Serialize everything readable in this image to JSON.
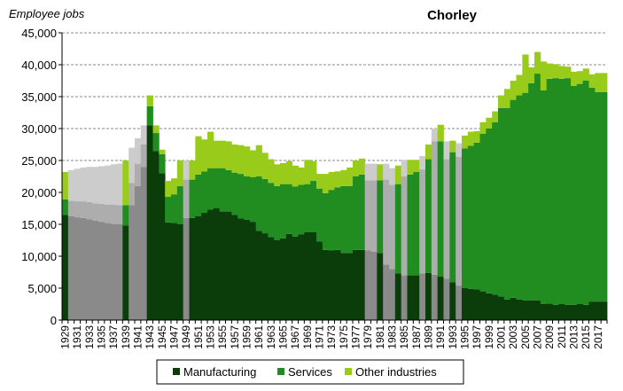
{
  "chart_data": {
    "type": "bar",
    "stacked": true,
    "title": "Chorley",
    "ylabel": "Employee jobs",
    "ylim": [
      0,
      45000
    ],
    "yticks": [
      0,
      5000,
      10000,
      15000,
      20000,
      25000,
      30000,
      35000,
      40000,
      45000
    ],
    "ytick_labels": [
      "0",
      "5,000",
      "10,000",
      "15,000",
      "20,000",
      "25,000",
      "30,000",
      "35,000",
      "40,000",
      "45,000"
    ],
    "xtick_labels": [
      "1929",
      "1931",
      "1933",
      "1935",
      "1937",
      "1939",
      "1941",
      "1943",
      "1945",
      "1947",
      "1949",
      "1951",
      "1953",
      "1955",
      "1957",
      "1959",
      "1961",
      "1963",
      "1965",
      "1967",
      "1969",
      "1971",
      "1973",
      "1975",
      "1977",
      "1979",
      "1981",
      "1983",
      "1985",
      "1987",
      "1989",
      "1991",
      "1993",
      "1995",
      "1997",
      "1999",
      "2001",
      "2003",
      "2005",
      "2007",
      "2009",
      "2011",
      "2013",
      "2015",
      "2017"
    ],
    "grid": true,
    "legend_position": "bottom",
    "colors": {
      "manufacturing": "#0a3d0a",
      "services": "#218d21",
      "other": "#99cc1a",
      "manufacturing_estimated": "#8a8a8a",
      "services_estimated": "#adadad",
      "other_estimated": "#cccccc"
    },
    "series": [
      {
        "name": "Manufacturing",
        "key": "manufacturing"
      },
      {
        "name": "Services",
        "key": "services"
      },
      {
        "name": "Other industries",
        "key": "other"
      }
    ],
    "years": [
      1929,
      1930,
      1931,
      1932,
      1933,
      1934,
      1935,
      1936,
      1937,
      1938,
      1939,
      1940,
      1941,
      1942,
      1943,
      1944,
      1945,
      1946,
      1947,
      1948,
      1949,
      1950,
      1951,
      1952,
      1953,
      1954,
      1955,
      1956,
      1957,
      1958,
      1959,
      1960,
      1961,
      1962,
      1963,
      1964,
      1965,
      1966,
      1967,
      1968,
      1969,
      1970,
      1971,
      1972,
      1973,
      1974,
      1975,
      1976,
      1977,
      1978,
      1979,
      1980,
      1981,
      1982,
      1983,
      1984,
      1985,
      1986,
      1987,
      1988,
      1989,
      1990,
      1991,
      1992,
      1993,
      1994,
      1995,
      1996,
      1997,
      1998,
      1999,
      2000,
      2001,
      2002,
      2003,
      2004,
      2005,
      2006,
      2007,
      2008,
      2009,
      2010,
      2011,
      2012,
      2013,
      2014,
      2015,
      2016,
      2017,
      2018
    ],
    "estimated": [
      false,
      true,
      true,
      true,
      true,
      true,
      true,
      true,
      true,
      true,
      false,
      true,
      true,
      true,
      false,
      false,
      false,
      false,
      false,
      false,
      true,
      false,
      false,
      false,
      false,
      false,
      false,
      false,
      false,
      false,
      false,
      false,
      false,
      false,
      false,
      false,
      false,
      false,
      false,
      false,
      false,
      false,
      false,
      false,
      false,
      false,
      false,
      false,
      false,
      false,
      true,
      true,
      false,
      true,
      true,
      false,
      true,
      false,
      false,
      true,
      false,
      true,
      false,
      true,
      false,
      true,
      false,
      false,
      false,
      false,
      false,
      false,
      false,
      false,
      false,
      false,
      false,
      false,
      false,
      false,
      false,
      false,
      false,
      false,
      false,
      false,
      false,
      false,
      false,
      false
    ],
    "manufacturing": [
      16500,
      16300,
      16100,
      16000,
      15800,
      15600,
      15400,
      15200,
      15100,
      15000,
      14800,
      18000,
      21000,
      24000,
      30500,
      26500,
      23000,
      15300,
      15200,
      15000,
      16000,
      16000,
      16300,
      16800,
      17300,
      17500,
      17000,
      17000,
      16500,
      15900,
      15700,
      15400,
      14000,
      13600,
      13000,
      12500,
      12800,
      13500,
      13100,
      13400,
      13800,
      13800,
      12300,
      11000,
      10900,
      11000,
      10500,
      10500,
      11000,
      11000,
      10900,
      10700,
      10500,
      8700,
      8000,
      7300,
      7000,
      7000,
      7000,
      7300,
      7400,
      7100,
      6800,
      6500,
      5900,
      5400,
      5000,
      4900,
      4800,
      4500,
      4200,
      4000,
      3700,
      3200,
      3500,
      3200,
      3100,
      3100,
      3100,
      2500,
      2600,
      2400,
      2500,
      2400,
      2400,
      2500,
      2400,
      2900,
      2900,
      2900
    ],
    "services": [
      2400,
      2400,
      2500,
      2600,
      2700,
      2700,
      2800,
      2900,
      3000,
      3000,
      3200,
      3500,
      3500,
      3500,
      3000,
      2800,
      3000,
      4000,
      4500,
      6000,
      6000,
      6000,
      6500,
      6500,
      6500,
      6300,
      6800,
      6500,
      6600,
      7000,
      6800,
      7000,
      8500,
      8500,
      8500,
      8500,
      8500,
      7800,
      7800,
      7800,
      7500,
      8000,
      8300,
      8900,
      9500,
      9800,
      10500,
      10500,
      11500,
      11800,
      11000,
      11200,
      11400,
      13300,
      13200,
      14000,
      15500,
      15800,
      16200,
      16300,
      17800,
      20900,
      21200,
      18700,
      20400,
      20200,
      21900,
      22400,
      23000,
      24700,
      25800,
      27000,
      29500,
      30000,
      31000,
      32000,
      32500,
      34000,
      35500,
      33500,
      35200,
      35500,
      35300,
      35500,
      34300,
      34500,
      35100,
      33500,
      32800,
      32800
    ],
    "other": [
      4300,
      4800,
      5100,
      5300,
      5500,
      5700,
      5900,
      6100,
      6300,
      6500,
      7000,
      5500,
      4000,
      3000,
      1700,
      1200,
      700,
      2500,
      2500,
      4000,
      3000,
      3000,
      6000,
      5000,
      5700,
      4300,
      4300,
      4500,
      4400,
      4500,
      4700,
      4200,
      4900,
      4100,
      3700,
      3400,
      3300,
      3600,
      3300,
      2700,
      3800,
      3100,
      2300,
      3000,
      2800,
      2500,
      2500,
      2900,
      2500,
      2500,
      2600,
      2600,
      2500,
      2500,
      2600,
      2900,
      2600,
      2300,
      1900,
      2100,
      2300,
      2000,
      2600,
      2800,
      1800,
      2100,
      2000,
      2200,
      1800,
      1800,
      1700,
      1700,
      2000,
      3000,
      3000,
      3200,
      6000,
      2500,
      3400,
      4500,
      2400,
      2200,
      2000,
      1800,
      2200,
      2000,
      1900,
      2100,
      3000,
      3000
    ]
  }
}
